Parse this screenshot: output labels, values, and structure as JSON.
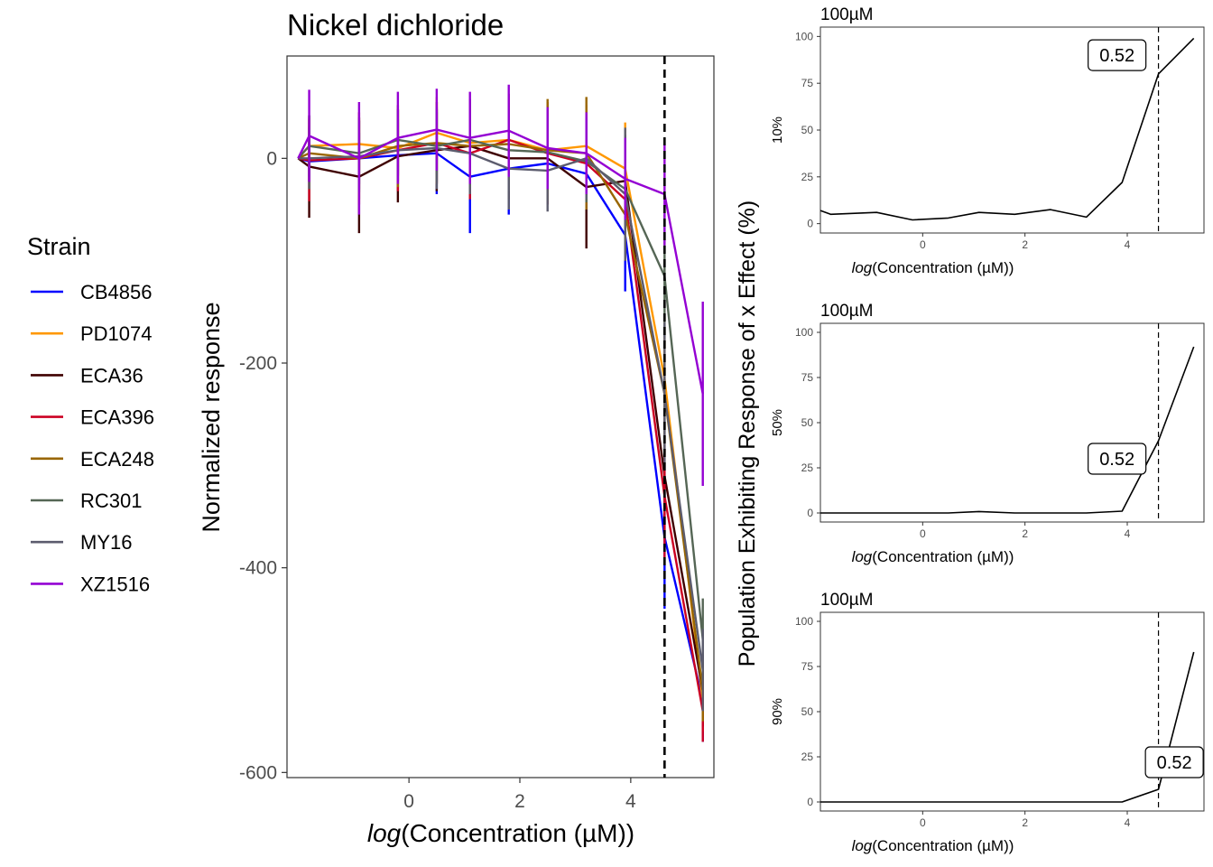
{
  "chart_data": [
    {
      "type": "line",
      "title": "Nickel dichloride",
      "xlabel_italic": "log",
      "xlabel_rest": "(Concentration (µM))",
      "ylabel": "Normalized response",
      "xlim": [
        -2.2,
        5.5
      ],
      "ylim": [
        -605,
        100
      ],
      "xticks": [
        0,
        2,
        4
      ],
      "yticks": [
        0,
        -200,
        -400,
        -600
      ],
      "vline": 4.61,
      "legend": {
        "title": "Strain",
        "position": "left"
      },
      "x": [
        -2.0,
        -1.8,
        -0.9,
        -0.2,
        0.5,
        1.1,
        1.8,
        2.5,
        3.2,
        3.9,
        4.61,
        5.3
      ],
      "series": [
        {
          "name": "CB4856",
          "color": "#0000ff",
          "values": [
            0,
            -3,
            0,
            3,
            5,
            -18,
            -10,
            -5,
            -15,
            -75,
            -370,
            -530
          ],
          "err": [
            0,
            20,
            25,
            20,
            40,
            55,
            45,
            35,
            35,
            55,
            70,
            40
          ]
        },
        {
          "name": "PD1074",
          "color": "#ff9800",
          "values": [
            0,
            12,
            14,
            10,
            25,
            15,
            18,
            8,
            12,
            -10,
            -215,
            -530
          ],
          "err": [
            0,
            20,
            25,
            25,
            35,
            40,
            35,
            45,
            40,
            45,
            60,
            30
          ]
        },
        {
          "name": "ECA36",
          "color": "#3f0000",
          "values": [
            0,
            -8,
            -18,
            2,
            8,
            12,
            0,
            0,
            -28,
            -22,
            -310,
            -520
          ],
          "err": [
            0,
            50,
            55,
            45,
            40,
            40,
            40,
            45,
            60,
            45,
            60,
            35
          ]
        },
        {
          "name": "ECA396",
          "color": "#cc0022",
          "values": [
            0,
            -2,
            0,
            8,
            15,
            5,
            18,
            5,
            -5,
            -40,
            -330,
            -540
          ],
          "err": [
            0,
            40,
            45,
            40,
            40,
            45,
            45,
            50,
            40,
            40,
            60,
            30
          ]
        },
        {
          "name": "ECA248",
          "color": "#996600",
          "values": [
            0,
            5,
            0,
            12,
            15,
            12,
            14,
            8,
            5,
            -55,
            -230,
            -520
          ],
          "err": [
            0,
            35,
            40,
            40,
            40,
            40,
            40,
            50,
            55,
            45,
            60,
            30
          ]
        },
        {
          "name": "RC301",
          "color": "#556655",
          "values": [
            0,
            12,
            5,
            18,
            12,
            18,
            8,
            6,
            -3,
            -30,
            -115,
            -470
          ],
          "err": [
            0,
            30,
            35,
            30,
            35,
            40,
            40,
            35,
            40,
            45,
            60,
            40
          ]
        },
        {
          "name": "MY16",
          "color": "#5c5c6e",
          "values": [
            0,
            0,
            2,
            8,
            10,
            5,
            -10,
            -12,
            0,
            -35,
            -230,
            -500
          ],
          "err": [
            0,
            30,
            35,
            30,
            40,
            40,
            40,
            40,
            40,
            65,
            70,
            40
          ]
        },
        {
          "name": "XZ1516",
          "color": "#9400d3",
          "values": [
            0,
            22,
            0,
            20,
            28,
            20,
            27,
            10,
            5,
            -20,
            -35,
            -230
          ],
          "err": [
            0,
            45,
            55,
            45,
            40,
            45,
            45,
            40,
            40,
            40,
            50,
            90
          ]
        }
      ]
    },
    {
      "type": "line",
      "title": "100µM",
      "ylabel": "10%",
      "xlabel_italic": "log",
      "xlabel_rest": "(Concentration (µM))",
      "xlim": [
        -2.0,
        5.5
      ],
      "ylim": [
        -5,
        105
      ],
      "xticks": [
        0,
        2,
        4
      ],
      "yticks": [
        0,
        25,
        50,
        75,
        100
      ],
      "vline": 4.61,
      "annotation": "0.52",
      "annotation_x": 3.8,
      "annotation_y": 90,
      "x": [
        -2.0,
        -1.8,
        -0.9,
        -0.2,
        0.5,
        1.1,
        1.8,
        2.5,
        3.2,
        3.9,
        4.61,
        5.3
      ],
      "values": [
        7,
        5,
        6,
        2,
        3,
        6,
        5,
        7.5,
        3.5,
        22,
        80,
        99
      ]
    },
    {
      "type": "line",
      "title": "100µM",
      "ylabel": "50%",
      "xlabel_italic": "log",
      "xlabel_rest": "(Concentration (µM))",
      "xlim": [
        -2.0,
        5.5
      ],
      "ylim": [
        -5,
        105
      ],
      "xticks": [
        0,
        2,
        4
      ],
      "yticks": [
        0,
        25,
        50,
        75,
        100
      ],
      "vline": 4.61,
      "annotation": "0.52",
      "annotation_x": 3.8,
      "annotation_y": 30,
      "x": [
        -2.0,
        -1.8,
        -0.9,
        -0.2,
        0.5,
        1.1,
        1.8,
        2.5,
        3.2,
        3.9,
        4.61,
        5.3
      ],
      "values": [
        0,
        0,
        0,
        0,
        0,
        0.8,
        0,
        0,
        0,
        1,
        40,
        92
      ]
    },
    {
      "type": "line",
      "title": "100µM",
      "ylabel": "90%",
      "xlabel_italic": "log",
      "xlabel_rest": "(Concentration (µM))",
      "xlim": [
        -2.0,
        5.5
      ],
      "ylim": [
        -5,
        105
      ],
      "xticks": [
        0,
        2,
        4
      ],
      "yticks": [
        0,
        25,
        50,
        75,
        100
      ],
      "vline": 4.61,
      "annotation": "0.52",
      "annotation_x": 4.92,
      "annotation_y": 22,
      "x": [
        -2.0,
        -1.8,
        -0.9,
        -0.2,
        0.5,
        1.1,
        1.8,
        2.5,
        3.2,
        3.9,
        4.61,
        5.3
      ],
      "values": [
        0,
        0,
        0,
        0,
        0,
        0,
        0,
        0,
        0,
        0,
        7,
        83
      ]
    }
  ],
  "shared_ylabel": "Population Exhibiting Response of x Effect (%)"
}
